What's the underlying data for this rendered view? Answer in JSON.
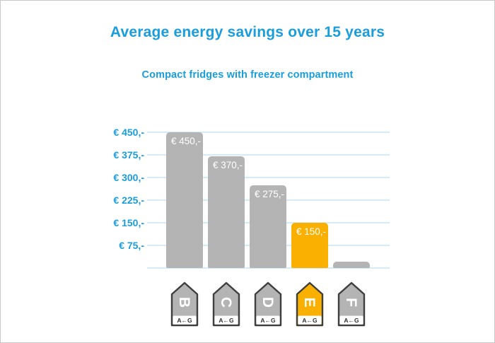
{
  "title": "Average energy savings over 15 years",
  "subtitle": "Compact fridges with freezer compartment",
  "chart_data": {
    "type": "bar",
    "title": "Average energy savings over 15 years",
    "subtitle": "Compact fridges with freezer compartment",
    "categories": [
      "B",
      "C",
      "D",
      "E",
      "F"
    ],
    "values": [
      450,
      370,
      275,
      150,
      20
    ],
    "bar_labels": [
      "€ 450,-",
      "€ 370,-",
      "€ 275,-",
      "€ 150,-",
      ""
    ],
    "highlight_index": 3,
    "xlabel": "",
    "ylabel": "",
    "ylim": [
      0,
      480
    ],
    "grid": true,
    "legend": false,
    "y_ticks": [
      {
        "value": 450,
        "label": "€ 450,-"
      },
      {
        "value": 375,
        "label": "€ 375,-"
      },
      {
        "value": 300,
        "label": "€ 300,-"
      },
      {
        "value": 225,
        "label": "€ 225,-"
      },
      {
        "value": 150,
        "label": "€ 150,-"
      },
      {
        "value": 75,
        "label": "€ 75,-"
      }
    ],
    "x_axis_marker": {
      "kind": "eu-energy-class-arrow",
      "scale_text": "A←G",
      "classes": [
        "B",
        "C",
        "D",
        "E",
        "F"
      ]
    },
    "colors": {
      "text_blue": "#1a9ddb",
      "bar_gray": "#b4b4b4",
      "bar_highlight_orange": "#f9b000",
      "gridline_blue": "#d6ebf8",
      "bar_label_white": "#ffffff",
      "label_border_dark": "#3f3f3e",
      "scale_text_dark": "#2f2f2e"
    }
  }
}
